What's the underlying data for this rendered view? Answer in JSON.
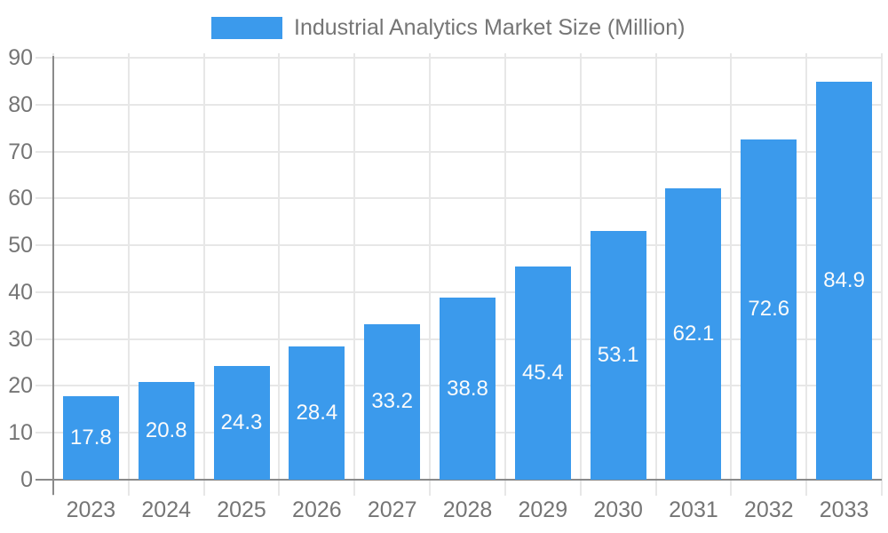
{
  "legend": {
    "label": "Industrial Analytics Market Size (Million)"
  },
  "colors": {
    "bar": "#3B9AEC",
    "grid": "#E7E7E7",
    "axis": "#8A8A8A",
    "tick_text": "#757575",
    "legend_text": "#757575",
    "value_label_text": "#FBFBFB",
    "background": "#FFFFFF"
  },
  "chart_data": {
    "type": "bar",
    "title": "Industrial Analytics Market Size (Million)",
    "categories": [
      "2023",
      "2024",
      "2025",
      "2026",
      "2027",
      "2028",
      "2029",
      "2030",
      "2031",
      "2032",
      "2033"
    ],
    "values": [
      17.8,
      20.8,
      24.3,
      28.4,
      33.2,
      38.8,
      45.4,
      53.1,
      62.1,
      72.6,
      84.9
    ],
    "series_name": "Industrial Analytics Market Size (Million)",
    "xlabel": "",
    "ylabel": "",
    "ylim": [
      0,
      90
    ],
    "ytick_step": 10,
    "yticks": [
      0,
      10,
      20,
      30,
      40,
      50,
      60,
      70,
      80,
      90
    ],
    "grid": true,
    "legend_position": "top",
    "value_labels": "inside-center",
    "value_label_format": "0.1f"
  }
}
